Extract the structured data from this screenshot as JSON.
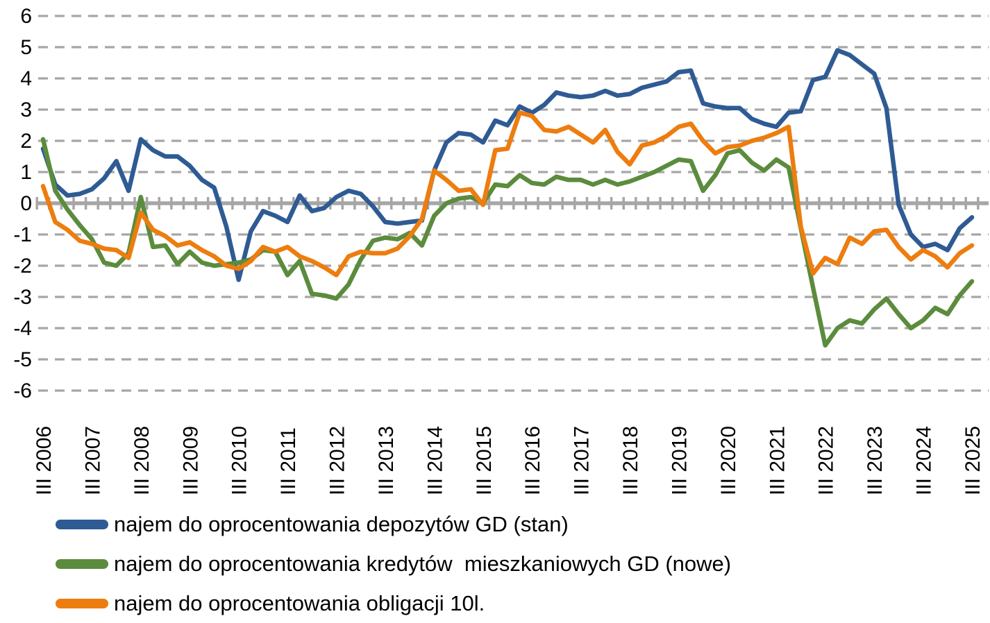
{
  "chart_data": {
    "type": "line",
    "title": "",
    "xlabel": "",
    "ylabel": "",
    "ylim": [
      -6,
      6
    ],
    "y_ticks": [
      6,
      5,
      4,
      3,
      2,
      1,
      0,
      -1,
      -2,
      -3,
      -4,
      -5,
      -6
    ],
    "grid": "horizontal-dashed-gray",
    "zero_axis": "solid-gray-with-quarterly-ticks",
    "legend_position": "bottom-left",
    "x_frequency": "quarterly",
    "n_points": 77,
    "x_points_per_label": 4,
    "x_tick_labels": [
      "III 2006",
      "III 2007",
      "III 2008",
      "III 2009",
      "III 2010",
      "III 2011",
      "III 2012",
      "III 2013",
      "III 2014",
      "III 2015",
      "III 2016",
      "III 2017",
      "III 2018",
      "III 2019",
      "III 2020",
      "III 2021",
      "III 2022",
      "III 2023",
      "III 2024",
      "III 2025"
    ],
    "series": [
      {
        "name": "najem do oprocentowania depozytów GD (stan)",
        "color": "#2F5B94",
        "values": [
          1.75,
          0.6,
          0.25,
          0.3,
          0.45,
          0.8,
          1.35,
          0.4,
          2.05,
          1.7,
          1.5,
          1.5,
          1.2,
          0.75,
          0.5,
          -0.75,
          -2.45,
          -0.9,
          -0.25,
          -0.4,
          -0.6,
          0.25,
          -0.25,
          -0.15,
          0.2,
          0.4,
          0.3,
          -0.1,
          -0.6,
          -0.65,
          -0.6,
          -0.55,
          1.05,
          1.95,
          2.25,
          2.2,
          1.95,
          2.65,
          2.5,
          3.1,
          2.9,
          3.15,
          3.55,
          3.45,
          3.4,
          3.45,
          3.6,
          3.45,
          3.5,
          3.7,
          3.8,
          3.9,
          4.2,
          4.25,
          3.2,
          3.1,
          3.05,
          3.05,
          2.7,
          2.55,
          2.45,
          2.9,
          2.95,
          3.95,
          4.05,
          4.9,
          4.75,
          4.45,
          4.15,
          3.05,
          -0.05,
          -1.0,
          -1.4,
          -1.3,
          -1.5,
          -0.8,
          -0.45
        ]
      },
      {
        "name": "najem do oprocentowania kredytów  mieszkaniowych GD (nowe)",
        "color": "#5B8C3D",
        "values": [
          2.05,
          0.4,
          -0.2,
          -0.7,
          -1.15,
          -1.9,
          -2.0,
          -1.6,
          0.2,
          -1.4,
          -1.35,
          -1.95,
          -1.55,
          -1.9,
          -2.0,
          -1.95,
          -1.9,
          -1.8,
          -1.5,
          -1.55,
          -2.3,
          -1.85,
          -2.9,
          -2.95,
          -3.05,
          -2.6,
          -1.8,
          -1.2,
          -1.1,
          -1.15,
          -0.95,
          -1.35,
          -0.4,
          0.0,
          0.15,
          0.2,
          0.0,
          0.6,
          0.55,
          0.9,
          0.65,
          0.6,
          0.85,
          0.75,
          0.75,
          0.6,
          0.75,
          0.6,
          0.7,
          0.85,
          1.0,
          1.2,
          1.4,
          1.35,
          0.4,
          0.9,
          1.6,
          1.7,
          1.3,
          1.05,
          1.4,
          1.15,
          -0.8,
          -2.7,
          -4.55,
          -4.0,
          -3.75,
          -3.85,
          -3.4,
          -3.05,
          -3.55,
          -4.0,
          -3.75,
          -3.35,
          -3.55,
          -2.95,
          -2.5
        ]
      },
      {
        "name": "najem do oprocentowania obligacji 10l.",
        "color": "#ED7D0F",
        "values": [
          0.55,
          -0.6,
          -0.85,
          -1.2,
          -1.3,
          -1.45,
          -1.5,
          -1.75,
          -0.3,
          -0.85,
          -1.05,
          -1.35,
          -1.25,
          -1.5,
          -1.7,
          -2.0,
          -2.1,
          -1.85,
          -1.4,
          -1.55,
          -1.4,
          -1.7,
          -1.85,
          -2.05,
          -2.3,
          -1.7,
          -1.55,
          -1.6,
          -1.6,
          -1.45,
          -1.05,
          -0.5,
          1.05,
          0.75,
          0.4,
          0.45,
          -0.05,
          1.7,
          1.75,
          2.9,
          2.8,
          2.35,
          2.3,
          2.45,
          2.2,
          1.95,
          2.35,
          1.65,
          1.25,
          1.85,
          1.95,
          2.15,
          2.45,
          2.55,
          2.0,
          1.6,
          1.8,
          1.85,
          2.0,
          2.1,
          2.25,
          2.45,
          -0.75,
          -2.25,
          -1.75,
          -1.95,
          -1.1,
          -1.3,
          -0.9,
          -0.85,
          -1.4,
          -1.8,
          -1.5,
          -1.7,
          -2.05,
          -1.6,
          -1.35
        ]
      }
    ],
    "style": {
      "grid_color": "#A6A6A6",
      "axis_color": "#A6A6A6",
      "text_color": "#000000",
      "line_width": 6.5
    }
  }
}
